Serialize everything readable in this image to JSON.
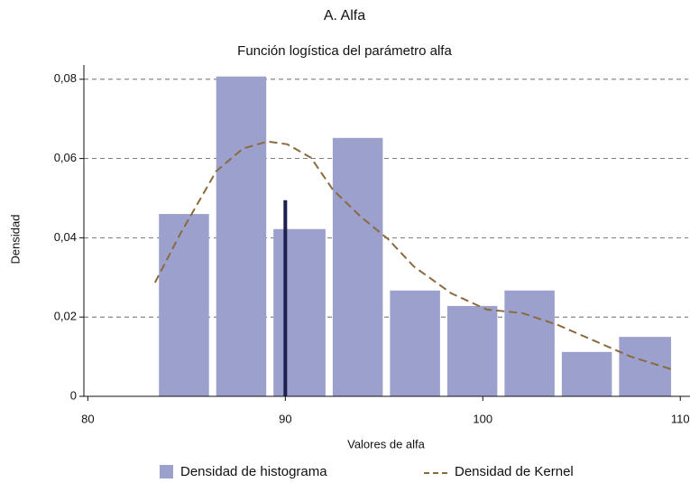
{
  "chart_data": {
    "type": "histogram",
    "title": "A. Alfa",
    "subtitle": "Función logística del parámetro alfa",
    "xlabel": "Valores de alfa",
    "ylabel": "Densidad",
    "name": "Densidad de histograma",
    "color": "#9ba0cc",
    "bins": [
      83.6,
      86.5,
      89.4,
      92.4,
      95.3,
      98.2,
      101.1,
      104.0,
      106.9,
      109.9
    ],
    "values": [
      0.046,
      0.0807,
      0.0422,
      0.0652,
      0.0267,
      0.0228,
      0.0267,
      0.0112,
      0.015
    ],
    "kde": {
      "name": "Densidad de Kernel",
      "color": "#8b6a3e",
      "x": [
        83.4,
        84.66,
        86.5,
        87.85,
        89.1,
        90.1,
        91.3,
        92.4,
        93.8,
        95.2,
        96.5,
        98.4,
        100.2,
        102.0,
        103.8,
        105.7,
        107.5,
        109.7
      ],
      "y": [
        0.0287,
        0.0408,
        0.0568,
        0.0625,
        0.0643,
        0.0636,
        0.0602,
        0.0522,
        0.0454,
        0.0397,
        0.0328,
        0.026,
        0.0219,
        0.021,
        0.018,
        0.0139,
        0.01,
        0.0066
      ]
    },
    "vline": {
      "x": 90,
      "y": 0.0495,
      "color": "#1c2150"
    },
    "xlim": [
      79.8,
      110.4
    ],
    "ylim": [
      0,
      0.0836
    ],
    "xticks": [
      80,
      90,
      100,
      110
    ],
    "yticks": [
      0,
      {
        "value": 0.02,
        "label": "0,02"
      },
      {
        "value": 0.04,
        "label": "0,04"
      },
      {
        "value": 0.06,
        "label": "0,06"
      },
      {
        "value": 0.08,
        "label": "0,08"
      }
    ],
    "grid": true
  }
}
